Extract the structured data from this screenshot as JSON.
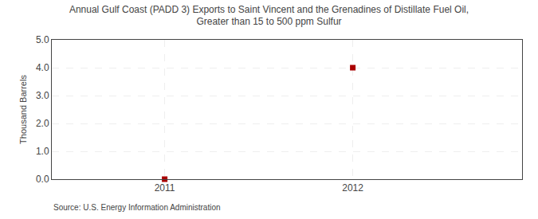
{
  "chart_data": {
    "type": "scatter",
    "title": "Annual Gulf Coast (PADD 3) Exports to Saint Vincent and the Grenadines of Distillate Fuel Oil,\nGreater than 15 to 500 ppm Sulfur",
    "ylabel": "Thousand Barrels",
    "annotations": [
      "Source: U.S. Energy Information Administration"
    ],
    "x": [
      2011,
      2012
    ],
    "values": [
      0,
      4.0
    ],
    "color": "#aa0000",
    "marker": "square",
    "xlim": [
      2010.4,
      2012.9
    ],
    "xticks": [
      2011,
      2012
    ],
    "ylim": [
      0.0,
      5.0
    ],
    "yticks": [
      {
        "value": 0.0,
        "label": "0.0"
      },
      {
        "value": 1.0,
        "label": "1.0"
      },
      {
        "value": 2.0,
        "label": "2.0"
      },
      {
        "value": 3.0,
        "label": "3.0"
      },
      {
        "value": 4.0,
        "label": "4.0"
      },
      {
        "value": 5.0,
        "label": "5.0"
      }
    ],
    "grid": true
  }
}
